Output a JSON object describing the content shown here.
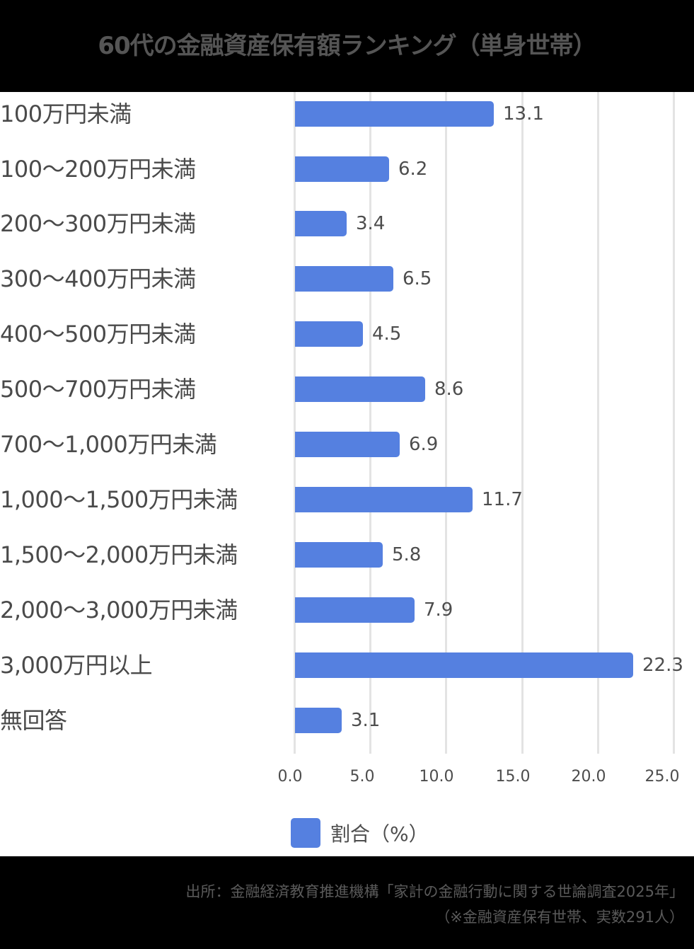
{
  "title": "60代の金融資産保有額ランキング（単身世帯）",
  "legend": {
    "label": "割合（%）",
    "color": "#5580e0"
  },
  "footer": {
    "source": "出所：金融経済教育推進機構「家計の金融行動に関する世論調査2025年」",
    "note": "（※金融資産保有世帯、実数291人）"
  },
  "axis": {
    "ticks": [
      "0.0",
      "5.0",
      "10.0",
      "15.0",
      "20.0",
      "25.0"
    ]
  },
  "rows": [
    {
      "label": "100万円未満",
      "value": "13.1"
    },
    {
      "label": "100〜200万円未満",
      "value": "6.2"
    },
    {
      "label": "200〜300万円未満",
      "value": "3.4"
    },
    {
      "label": "300〜400万円未満",
      "value": "6.5"
    },
    {
      "label": "400〜500万円未満",
      "value": "4.5"
    },
    {
      "label": "500〜700万円未満",
      "value": "8.6"
    },
    {
      "label": "700〜1,000万円未満",
      "value": "6.9"
    },
    {
      "label": "1,000〜1,500万円未満",
      "value": "11.7"
    },
    {
      "label": "1,500〜2,000万円未満",
      "value": "5.8"
    },
    {
      "label": "2,000〜3,000万円未満",
      "value": "7.9"
    },
    {
      "label": "3,000万円以上",
      "value": "22.3"
    },
    {
      "label": "無回答",
      "value": "3.1"
    }
  ],
  "chart_data": {
    "type": "bar",
    "orientation": "horizontal",
    "title": "60代の金融資産保有額ランキング（単身世帯）",
    "categories": [
      "100万円未満",
      "100〜200万円未満",
      "200〜300万円未満",
      "300〜400万円未満",
      "400〜500万円未満",
      "500〜700万円未満",
      "700〜1,000万円未満",
      "1,000〜1,500万円未満",
      "1,500〜2,000万円未満",
      "2,000〜3,000万円未満",
      "3,000万円以上",
      "無回答"
    ],
    "series": [
      {
        "name": "割合（%）",
        "values": [
          13.1,
          6.2,
          3.4,
          6.5,
          4.5,
          8.6,
          6.9,
          11.7,
          5.8,
          7.9,
          22.3,
          3.1
        ],
        "color": "#5580e0"
      }
    ],
    "xlabel": "",
    "ylabel": "",
    "xlim": [
      0,
      25
    ],
    "xticks": [
      0.0,
      5.0,
      10.0,
      15.0,
      20.0,
      25.0
    ],
    "grid": true,
    "data_labels": true,
    "legend_position": "bottom"
  }
}
